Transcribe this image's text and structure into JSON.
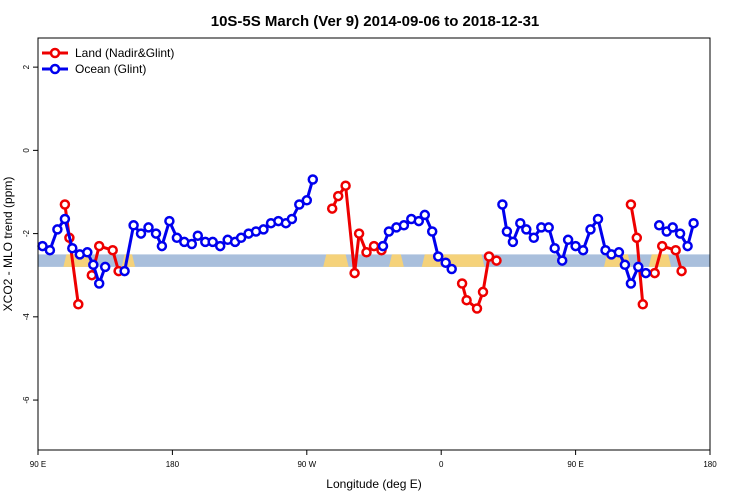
{
  "chart_data": {
    "type": "line",
    "title": "10S-5S March (Ver 9)   2014-09-06 to 2018-12-31",
    "xlabel": "Longitude (deg E)",
    "ylabel": "XCO2 - MLO trend (ppm)",
    "xlim": [
      90,
      540
    ],
    "ylim": [
      -7.2,
      2.7
    ],
    "x_ticks": [
      {
        "value": 90,
        "label": "90 E"
      },
      {
        "value": 180,
        "label": "180"
      },
      {
        "value": 270,
        "label": "90 W"
      },
      {
        "value": 360,
        "label": "0"
      },
      {
        "value": 450,
        "label": "90 E"
      },
      {
        "value": 540,
        "label": "180"
      }
    ],
    "y_ticks": [
      {
        "value": 2,
        "label": "2"
      },
      {
        "value": 0,
        "label": "0"
      },
      {
        "value": -2,
        "label": "-2"
      },
      {
        "value": -4,
        "label": "-4"
      },
      {
        "value": -6,
        "label": "-6"
      }
    ],
    "legend_position": "top-left",
    "surface_band": {
      "y_range": [
        -2.8,
        -2.5
      ],
      "ocean_color": "#a9bfdc",
      "land_color": "#f5d27a",
      "land_spans": [
        [
          107,
          126
        ],
        [
          146,
          155
        ],
        [
          281,
          298
        ],
        [
          325,
          335
        ],
        [
          347,
          389
        ],
        [
          469,
          487
        ],
        [
          499,
          514
        ]
      ]
    },
    "series": [
      {
        "name": "Land (Nadir&Glint)",
        "color": "#ee0000",
        "segments": [
          [
            [
              108,
              -1.3
            ],
            [
              111,
              -2.1
            ],
            [
              117,
              -3.7
            ]
          ],
          [
            [
              126,
              -3.0
            ],
            [
              131,
              -2.3
            ],
            [
              140,
              -2.4
            ],
            [
              144,
              -2.9
            ]
          ],
          [
            [
              287,
              -1.4
            ],
            [
              291,
              -1.1
            ],
            [
              296,
              -0.85
            ],
            [
              302,
              -2.95
            ],
            [
              305,
              -2.0
            ],
            [
              310,
              -2.45
            ],
            [
              315,
              -2.3
            ],
            [
              320,
              -2.4
            ]
          ],
          [
            [
              374,
              -3.2
            ],
            [
              377,
              -3.6
            ],
            [
              384,
              -3.8
            ],
            [
              388,
              -3.4
            ],
            [
              392,
              -2.55
            ],
            [
              397,
              -2.65
            ]
          ],
          [
            [
              487,
              -1.3
            ],
            [
              491,
              -2.1
            ],
            [
              495,
              -3.7
            ]
          ],
          [
            [
              503,
              -2.95
            ],
            [
              508,
              -2.3
            ],
            [
              517,
              -2.4
            ],
            [
              521,
              -2.9
            ]
          ]
        ]
      },
      {
        "name": "Ocean (Glint)",
        "color": "#0000ee",
        "segments": [
          [
            [
              93,
              -2.3
            ],
            [
              98,
              -2.4
            ],
            [
              103,
              -1.9
            ],
            [
              108,
              -1.65
            ],
            [
              113,
              -2.35
            ],
            [
              118,
              -2.5
            ],
            [
              123,
              -2.45
            ],
            [
              127,
              -2.75
            ],
            [
              131,
              -3.2
            ],
            [
              135,
              -2.8
            ]
          ],
          [
            [
              148,
              -2.9
            ],
            [
              154,
              -1.8
            ],
            [
              159,
              -2.0
            ],
            [
              164,
              -1.85
            ],
            [
              169,
              -2.0
            ],
            [
              173,
              -2.3
            ],
            [
              178,
              -1.7
            ],
            [
              183,
              -2.1
            ],
            [
              188,
              -2.2
            ],
            [
              193,
              -2.25
            ],
            [
              197,
              -2.05
            ],
            [
              202,
              -2.2
            ],
            [
              207,
              -2.2
            ],
            [
              212,
              -2.3
            ],
            [
              217,
              -2.15
            ],
            [
              222,
              -2.2
            ],
            [
              226,
              -2.1
            ],
            [
              231,
              -2.0
            ],
            [
              236,
              -1.95
            ],
            [
              241,
              -1.9
            ],
            [
              246,
              -1.75
            ],
            [
              251,
              -1.7
            ],
            [
              256,
              -1.75
            ],
            [
              260,
              -1.65
            ],
            [
              265,
              -1.3
            ],
            [
              270,
              -1.2
            ],
            [
              274,
              -0.7
            ]
          ],
          [
            [
              321,
              -2.3
            ],
            [
              325,
              -1.95
            ],
            [
              330,
              -1.85
            ],
            [
              335,
              -1.8
            ],
            [
              340,
              -1.65
            ],
            [
              345,
              -1.7
            ],
            [
              349,
              -1.55
            ],
            [
              354,
              -1.95
            ],
            [
              358,
              -2.55
            ],
            [
              363,
              -2.7
            ],
            [
              367,
              -2.85
            ]
          ],
          [
            [
              401,
              -1.3
            ],
            [
              404,
              -1.95
            ],
            [
              408,
              -2.2
            ],
            [
              413,
              -1.75
            ],
            [
              417,
              -1.9
            ],
            [
              422,
              -2.1
            ],
            [
              427,
              -1.85
            ],
            [
              432,
              -1.85
            ],
            [
              436,
              -2.35
            ],
            [
              441,
              -2.65
            ],
            [
              445,
              -2.15
            ],
            [
              450,
              -2.3
            ],
            [
              455,
              -2.4
            ],
            [
              460,
              -1.9
            ],
            [
              465,
              -1.65
            ],
            [
              470,
              -2.4
            ],
            [
              474,
              -2.5
            ],
            [
              479,
              -2.45
            ],
            [
              483,
              -2.75
            ],
            [
              487,
              -3.2
            ],
            [
              492,
              -2.8
            ],
            [
              497,
              -2.95
            ]
          ],
          [
            [
              506,
              -1.8
            ],
            [
              511,
              -1.95
            ],
            [
              515,
              -1.85
            ],
            [
              520,
              -2.0
            ],
            [
              525,
              -2.3
            ],
            [
              529,
              -1.75
            ]
          ]
        ]
      }
    ]
  }
}
